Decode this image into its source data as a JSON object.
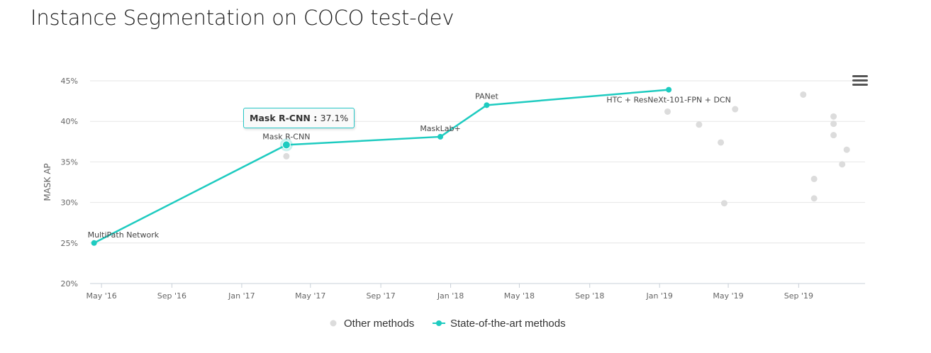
{
  "title": "Instance Segmentation on COCO test-dev",
  "chart_data": {
    "type": "scatter",
    "title": "Instance Segmentation on COCO test-dev",
    "ylabel": "MASK AP",
    "xlabel": "",
    "ylim": [
      20,
      45
    ],
    "y_ticks": [
      "20%",
      "25%",
      "30%",
      "35%",
      "40%",
      "45%"
    ],
    "y_tick_values": [
      20,
      25,
      30,
      35,
      40,
      45
    ],
    "xlim": [
      "2016-04-11",
      "2019-12-26"
    ],
    "x_ticks": [
      "May '16",
      "Sep '16",
      "Jan '17",
      "May '17",
      "Sep '17",
      "Jan '18",
      "May '18",
      "Sep '18",
      "Jan '19",
      "May '19",
      "Sep '19"
    ],
    "x_tick_dates": [
      "2016-05-01",
      "2016-09-01",
      "2017-01-01",
      "2017-05-01",
      "2017-09-01",
      "2018-01-01",
      "2018-05-01",
      "2018-09-01",
      "2019-01-01",
      "2019-05-01",
      "2019-09-01"
    ],
    "grid": true,
    "legend_position": "bottom-center",
    "series": [
      {
        "name": "Other methods",
        "color": "#dcdcdc",
        "points": [
          {
            "x": "2017-03-20",
            "y": 35.7
          },
          {
            "x": "2019-01-15",
            "y": 41.2
          },
          {
            "x": "2019-03-11",
            "y": 39.6
          },
          {
            "x": "2019-04-18",
            "y": 37.4
          },
          {
            "x": "2019-04-24",
            "y": 29.9
          },
          {
            "x": "2019-05-13",
            "y": 41.5
          },
          {
            "x": "2019-09-09",
            "y": 43.3
          },
          {
            "x": "2019-09-28",
            "y": 32.9
          },
          {
            "x": "2019-09-28",
            "y": 30.5
          },
          {
            "x": "2019-11-01",
            "y": 40.6
          },
          {
            "x": "2019-11-01",
            "y": 39.7
          },
          {
            "x": "2019-11-01",
            "y": 38.3
          },
          {
            "x": "2019-11-16",
            "y": 34.7
          },
          {
            "x": "2019-11-24",
            "y": 36.5
          }
        ]
      },
      {
        "name": "State-of-the-art methods",
        "color": "#1ecbc0",
        "points": [
          {
            "x": "2016-04-18",
            "y": 25.0,
            "label": "MultiPath Network"
          },
          {
            "x": "2017-03-20",
            "y": 37.1,
            "label": "Mask R-CNN"
          },
          {
            "x": "2017-12-14",
            "y": 38.1,
            "label": "MaskLab+"
          },
          {
            "x": "2018-03-05",
            "y": 42.0,
            "label": "PANet"
          },
          {
            "x": "2019-01-17",
            "y": 43.9,
            "label": "HTC + ResNeXt-101-FPN + DCN"
          }
        ]
      }
    ],
    "tooltip": {
      "name": "Mask R-CNN",
      "value": "37.1%"
    }
  },
  "legend": {
    "other_label": "Other methods",
    "sota_label": "State-of-the-art methods"
  }
}
